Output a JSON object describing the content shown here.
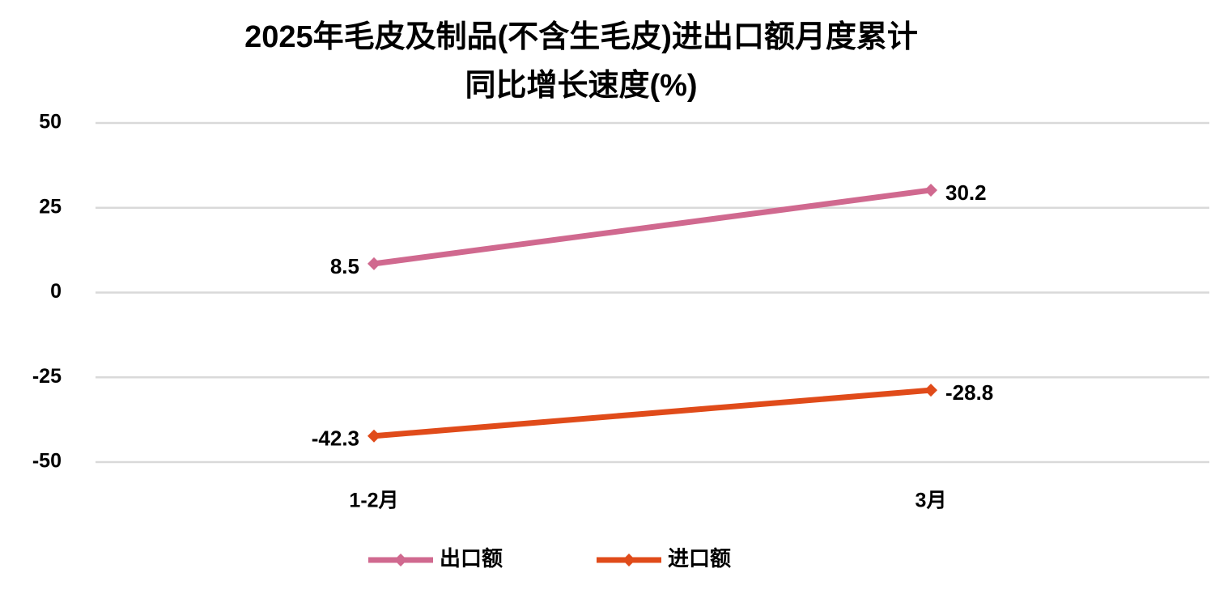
{
  "chart_data": {
    "type": "line",
    "title": [
      "2025年毛皮及制品(不含生毛皮)进出口额月度累计",
      "同比增长速度(%)"
    ],
    "categories": [
      "1-2月",
      "3月"
    ],
    "series": [
      {
        "name": "出口额",
        "color": "#d0698f",
        "values": [
          8.5,
          30.2
        ]
      },
      {
        "name": "进口额",
        "color": "#e04b1a",
        "values": [
          -42.3,
          -28.8
        ]
      }
    ],
    "ylim": [
      -50,
      50
    ],
    "yticks": [
      -50,
      -25,
      0,
      25,
      50
    ],
    "grid": true,
    "legend": "bottom"
  }
}
